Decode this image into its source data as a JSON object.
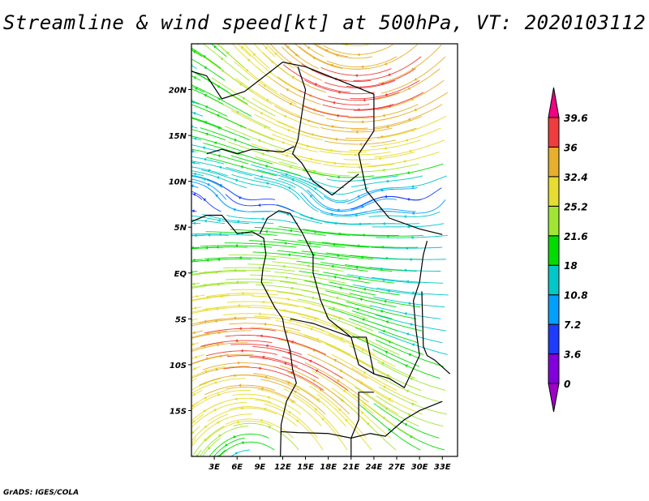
{
  "title": "Streamline & wind speed[kt] at 500hPa, VT: 2020103112",
  "footer": "GrADS: IGES/COLA",
  "map": {
    "lon_range": [
      0,
      35
    ],
    "lat_range": [
      -20,
      25
    ],
    "lon_ticks": [
      {
        "value": 3,
        "label": "3E"
      },
      {
        "value": 6,
        "label": "6E"
      },
      {
        "value": 9,
        "label": "9E"
      },
      {
        "value": 12,
        "label": "12E"
      },
      {
        "value": 15,
        "label": "15E"
      },
      {
        "value": 18,
        "label": "18E"
      },
      {
        "value": 21,
        "label": "21E"
      },
      {
        "value": 24,
        "label": "24E"
      },
      {
        "value": 27,
        "label": "27E"
      },
      {
        "value": 30,
        "label": "30E"
      },
      {
        "value": 33,
        "label": "33E"
      }
    ],
    "lat_ticks": [
      {
        "value": 20,
        "label": "20N"
      },
      {
        "value": 15,
        "label": "15N"
      },
      {
        "value": 10,
        "label": "10N"
      },
      {
        "value": 5,
        "label": "5N"
      },
      {
        "value": 0,
        "label": "EQ"
      },
      {
        "value": -5,
        "label": "5S"
      },
      {
        "value": -10,
        "label": "10S"
      },
      {
        "value": -15,
        "label": "15S"
      }
    ]
  },
  "colorbar": {
    "levels": [
      "0",
      "3.6",
      "7.2",
      "10.8",
      "18",
      "21.6",
      "25.2",
      "32.4",
      "36",
      "39.6"
    ],
    "level_values": [
      0,
      3.6,
      7.2,
      10.8,
      18,
      21.6,
      25.2,
      32.4,
      36,
      39.6
    ],
    "colors": [
      "#a000c8",
      "#8200dc",
      "#1e3cff",
      "#00a0ff",
      "#00c8c8",
      "#00dc00",
      "#a0e632",
      "#e6dc32",
      "#e6af2d",
      "#f03c3c",
      "#f00082"
    ]
  }
}
